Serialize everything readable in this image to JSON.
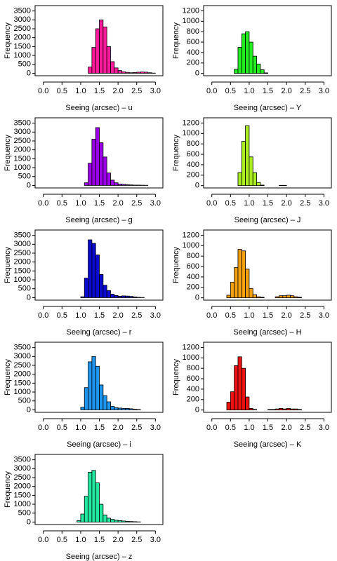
{
  "chart_data": [
    {
      "type": "histogram",
      "xlabel": "Seeing (arcsec) – u",
      "ylabel": "Frequency",
      "color": "#ff1a9a",
      "bins": [
        0,
        0.1,
        0.2,
        0.3,
        0.4,
        0.5,
        0.6,
        0.7,
        0.8,
        0.9,
        1,
        1.1,
        1.2,
        1.3,
        1.4,
        1.5,
        1.6,
        1.7,
        1.8,
        1.9,
        2,
        2.1,
        2.2,
        2.3,
        2.4,
        2.5,
        2.6,
        2.7,
        2.8,
        2.9,
        3
      ],
      "counts": [
        0,
        0,
        0,
        0,
        0,
        0,
        0,
        0,
        0,
        0,
        0,
        0,
        350,
        1450,
        2500,
        3000,
        2600,
        1500,
        650,
        300,
        150,
        80,
        50,
        30,
        40,
        60,
        70,
        60,
        30,
        10
      ],
      "xlim": [
        -0.22,
        3.2
      ],
      "ylim": [
        -140,
        3800
      ],
      "xticks": [
        {
          "value": 0,
          "label": "0.0"
        },
        0.5,
        {
          "value": 1,
          "label": "1.0"
        },
        1.5,
        {
          "value": 2,
          "label": "2.0"
        },
        2.5,
        {
          "value": 3,
          "label": "3.0"
        }
      ],
      "yticks": [
        0,
        500,
        1000,
        1500,
        2000,
        2500,
        3000,
        3500
      ]
    },
    {
      "type": "histogram",
      "xlabel": "Seeing (arcsec) – Y",
      "ylabel": "Frequency",
      "color": "#22ee22",
      "bins": [
        0,
        0.1,
        0.2,
        0.3,
        0.4,
        0.5,
        0.6,
        0.7,
        0.8,
        0.9,
        1,
        1.1,
        1.2,
        1.3,
        1.4,
        1.5,
        1.6,
        1.7,
        1.8,
        1.9,
        2,
        2.1,
        2.2,
        2.3,
        2.4,
        2.5,
        2.6,
        2.7,
        2.8,
        2.9,
        3
      ],
      "counts": [
        0,
        0,
        0,
        0,
        0,
        0,
        80,
        500,
        760,
        800,
        600,
        330,
        180,
        70,
        10,
        0,
        0,
        0,
        0,
        0,
        0,
        0,
        0,
        0,
        0,
        0,
        0,
        0,
        0,
        0
      ],
      "xlim": [
        -0.22,
        3.2
      ],
      "ylim": [
        -45,
        1300
      ],
      "xticks": [
        {
          "value": 0,
          "label": "0.0"
        },
        0.5,
        {
          "value": 1,
          "label": "1.0"
        },
        1.5,
        {
          "value": 2,
          "label": "2.0"
        },
        2.5,
        {
          "value": 3,
          "label": "3.0"
        }
      ],
      "yticks": [
        0,
        200,
        400,
        600,
        800,
        1000,
        1200
      ]
    },
    {
      "type": "histogram",
      "xlabel": "Seeing (arcsec) – g",
      "ylabel": "Frequency",
      "color": "#9b00e8",
      "bins": [
        0,
        0.1,
        0.2,
        0.3,
        0.4,
        0.5,
        0.6,
        0.7,
        0.8,
        0.9,
        1,
        1.1,
        1.2,
        1.3,
        1.4,
        1.5,
        1.6,
        1.7,
        1.8,
        1.9,
        2,
        2.1,
        2.2,
        2.3,
        2.4,
        2.5,
        2.6,
        2.7,
        2.8,
        2.9,
        3
      ],
      "counts": [
        0,
        0,
        0,
        0,
        0,
        0,
        0,
        0,
        0,
        0,
        0,
        150,
        1250,
        2600,
        3250,
        2400,
        1600,
        700,
        300,
        150,
        80,
        60,
        40,
        30,
        20,
        20,
        15,
        10,
        0,
        0
      ],
      "xlim": [
        -0.22,
        3.2
      ],
      "ylim": [
        -140,
        3800
      ],
      "xticks": [
        {
          "value": 0,
          "label": "0.0"
        },
        0.5,
        {
          "value": 1,
          "label": "1.0"
        },
        1.5,
        {
          "value": 2,
          "label": "2.0"
        },
        2.5,
        {
          "value": 3,
          "label": "3.0"
        }
      ],
      "yticks": [
        0,
        500,
        1000,
        1500,
        2000,
        2500,
        3000,
        3500
      ]
    },
    {
      "type": "histogram",
      "xlabel": "Seeing (arcsec) – J",
      "ylabel": "Frequency",
      "color": "#aaee22",
      "bins": [
        0,
        0.1,
        0.2,
        0.3,
        0.4,
        0.5,
        0.6,
        0.7,
        0.8,
        0.9,
        1,
        1.1,
        1.2,
        1.3,
        1.4,
        1.5,
        1.6,
        1.7,
        1.8,
        1.9,
        2,
        2.1,
        2.2,
        2.3,
        2.4,
        2.5,
        2.6,
        2.7,
        2.8,
        2.9,
        3
      ],
      "counts": [
        0,
        0,
        0,
        0,
        0,
        0,
        0,
        250,
        850,
        1150,
        550,
        250,
        60,
        10,
        0,
        0,
        0,
        0,
        5,
        5,
        0,
        0,
        0,
        0,
        0,
        0,
        0,
        0,
        0,
        0
      ],
      "xlim": [
        -0.22,
        3.2
      ],
      "ylim": [
        -45,
        1300
      ],
      "xticks": [
        {
          "value": 0,
          "label": "0.0"
        },
        0.5,
        {
          "value": 1,
          "label": "1.0"
        },
        1.5,
        {
          "value": 2,
          "label": "2.0"
        },
        2.5,
        {
          "value": 3,
          "label": "3.0"
        }
      ],
      "yticks": [
        0,
        200,
        400,
        600,
        800,
        1000,
        1200
      ]
    },
    {
      "type": "histogram",
      "xlabel": "Seeing (arcsec) – r",
      "ylabel": "Frequency",
      "color": "#0a0ad0",
      "bins": [
        0,
        0.1,
        0.2,
        0.3,
        0.4,
        0.5,
        0.6,
        0.7,
        0.8,
        0.9,
        1,
        1.1,
        1.2,
        1.3,
        1.4,
        1.5,
        1.6,
        1.7,
        1.8,
        1.9,
        2,
        2.1,
        2.2,
        2.3,
        2.4,
        2.5,
        2.6,
        2.7,
        2.8,
        2.9,
        3
      ],
      "counts": [
        0,
        0,
        0,
        0,
        0,
        0,
        0,
        0,
        0,
        0,
        50,
        1100,
        3250,
        3050,
        2400,
        1300,
        700,
        400,
        200,
        120,
        80,
        100,
        90,
        70,
        40,
        20,
        10,
        0,
        0,
        0
      ],
      "xlim": [
        -0.22,
        3.2
      ],
      "ylim": [
        -140,
        3800
      ],
      "xticks": [
        {
          "value": 0,
          "label": "0.0"
        },
        0.5,
        {
          "value": 1,
          "label": "1.0"
        },
        1.5,
        {
          "value": 2,
          "label": "2.0"
        },
        2.5,
        {
          "value": 3,
          "label": "3.0"
        }
      ],
      "yticks": [
        0,
        500,
        1000,
        1500,
        2000,
        2500,
        3000,
        3500
      ]
    },
    {
      "type": "histogram",
      "xlabel": "Seeing (arcsec) – H",
      "ylabel": "Frequency",
      "color": "#f5a010",
      "bins": [
        0,
        0.1,
        0.2,
        0.3,
        0.4,
        0.5,
        0.6,
        0.7,
        0.8,
        0.9,
        1,
        1.1,
        1.2,
        1.3,
        1.4,
        1.5,
        1.6,
        1.7,
        1.8,
        1.9,
        2,
        2.1,
        2.2,
        2.3,
        2.4,
        2.5,
        2.6,
        2.7,
        2.8,
        2.9,
        3
      ],
      "counts": [
        0,
        0,
        0,
        0,
        50,
        300,
        580,
        930,
        900,
        550,
        180,
        60,
        20,
        10,
        0,
        0,
        0,
        20,
        40,
        40,
        50,
        40,
        20,
        10,
        0,
        0,
        0,
        0,
        0,
        0
      ],
      "xlim": [
        -0.22,
        3.2
      ],
      "ylim": [
        -45,
        1300
      ],
      "xticks": [
        {
          "value": 0,
          "label": "0.0"
        },
        0.5,
        {
          "value": 1,
          "label": "1.0"
        },
        1.5,
        {
          "value": 2,
          "label": "2.0"
        },
        2.5,
        {
          "value": 3,
          "label": "3.0"
        }
      ],
      "yticks": [
        0,
        200,
        400,
        600,
        800,
        1000,
        1200
      ]
    },
    {
      "type": "histogram",
      "xlabel": "Seeing (arcsec) – i",
      "ylabel": "Frequency",
      "color": "#1e96f0",
      "bins": [
        0,
        0.1,
        0.2,
        0.3,
        0.4,
        0.5,
        0.6,
        0.7,
        0.8,
        0.9,
        1,
        1.1,
        1.2,
        1.3,
        1.4,
        1.5,
        1.6,
        1.7,
        1.8,
        1.9,
        2,
        2.1,
        2.2,
        2.3,
        2.4,
        2.5,
        2.6,
        2.7,
        2.8,
        2.9,
        3
      ],
      "counts": [
        0,
        0,
        0,
        0,
        0,
        0,
        0,
        0,
        0,
        0,
        150,
        1250,
        2700,
        3000,
        2450,
        1400,
        800,
        450,
        200,
        120,
        100,
        80,
        80,
        60,
        30,
        20,
        0,
        0,
        0,
        0
      ],
      "xlim": [
        -0.22,
        3.2
      ],
      "ylim": [
        -140,
        3800
      ],
      "xticks": [
        {
          "value": 0,
          "label": "0.0"
        },
        0.5,
        {
          "value": 1,
          "label": "1.0"
        },
        1.5,
        {
          "value": 2,
          "label": "2.0"
        },
        2.5,
        {
          "value": 3,
          "label": "3.0"
        }
      ],
      "yticks": [
        0,
        500,
        1000,
        1500,
        2000,
        2500,
        3000,
        3500
      ]
    },
    {
      "type": "histogram",
      "xlabel": "Seeing (arcsec) – K",
      "ylabel": "Frequency",
      "color": "#ee1111",
      "bins": [
        0,
        0.1,
        0.2,
        0.3,
        0.4,
        0.5,
        0.6,
        0.7,
        0.8,
        0.9,
        1,
        1.1,
        1.2,
        1.3,
        1.4,
        1.5,
        1.6,
        1.7,
        1.8,
        1.9,
        2,
        2.1,
        2.2,
        2.3,
        2.4,
        2.5,
        2.6,
        2.7,
        2.8,
        2.9,
        3
      ],
      "counts": [
        0,
        0,
        0,
        0,
        150,
        350,
        850,
        1020,
        800,
        250,
        30,
        10,
        0,
        0,
        0,
        10,
        10,
        20,
        30,
        20,
        30,
        20,
        20,
        10,
        0,
        0,
        0,
        0,
        0,
        0
      ],
      "xlim": [
        -0.22,
        3.2
      ],
      "ylim": [
        -45,
        1300
      ],
      "xticks": [
        {
          "value": 0,
          "label": "0.0"
        },
        0.5,
        {
          "value": 1,
          "label": "1.0"
        },
        1.5,
        {
          "value": 2,
          "label": "2.0"
        },
        2.5,
        {
          "value": 3,
          "label": "3.0"
        }
      ],
      "yticks": [
        0,
        200,
        400,
        600,
        800,
        1000,
        1200
      ]
    },
    {
      "type": "histogram",
      "xlabel": "Seeing (arcsec) – z",
      "ylabel": "Frequency",
      "color": "#22e8a0",
      "bins": [
        0,
        0.1,
        0.2,
        0.3,
        0.4,
        0.5,
        0.6,
        0.7,
        0.8,
        0.9,
        1,
        1.1,
        1.2,
        1.3,
        1.4,
        1.5,
        1.6,
        1.7,
        1.8,
        1.9,
        2,
        2.1,
        2.2,
        2.3,
        2.4,
        2.5,
        2.6,
        2.7,
        2.8,
        2.9,
        3
      ],
      "counts": [
        0,
        0,
        0,
        0,
        0,
        0,
        0,
        0,
        0,
        80,
        450,
        1450,
        2800,
        2900,
        2200,
        1000,
        400,
        220,
        150,
        100,
        80,
        60,
        40,
        30,
        20,
        10,
        0,
        0,
        0,
        0
      ],
      "xlim": [
        -0.22,
        3.2
      ],
      "ylim": [
        -140,
        3800
      ],
      "xticks": [
        {
          "value": 0,
          "label": "0.0"
        },
        0.5,
        {
          "value": 1,
          "label": "1.0"
        },
        1.5,
        {
          "value": 2,
          "label": "2.0"
        },
        2.5,
        {
          "value": 3,
          "label": "3.0"
        }
      ],
      "yticks": [
        0,
        500,
        1000,
        1500,
        2000,
        2500,
        3000,
        3500
      ]
    }
  ]
}
